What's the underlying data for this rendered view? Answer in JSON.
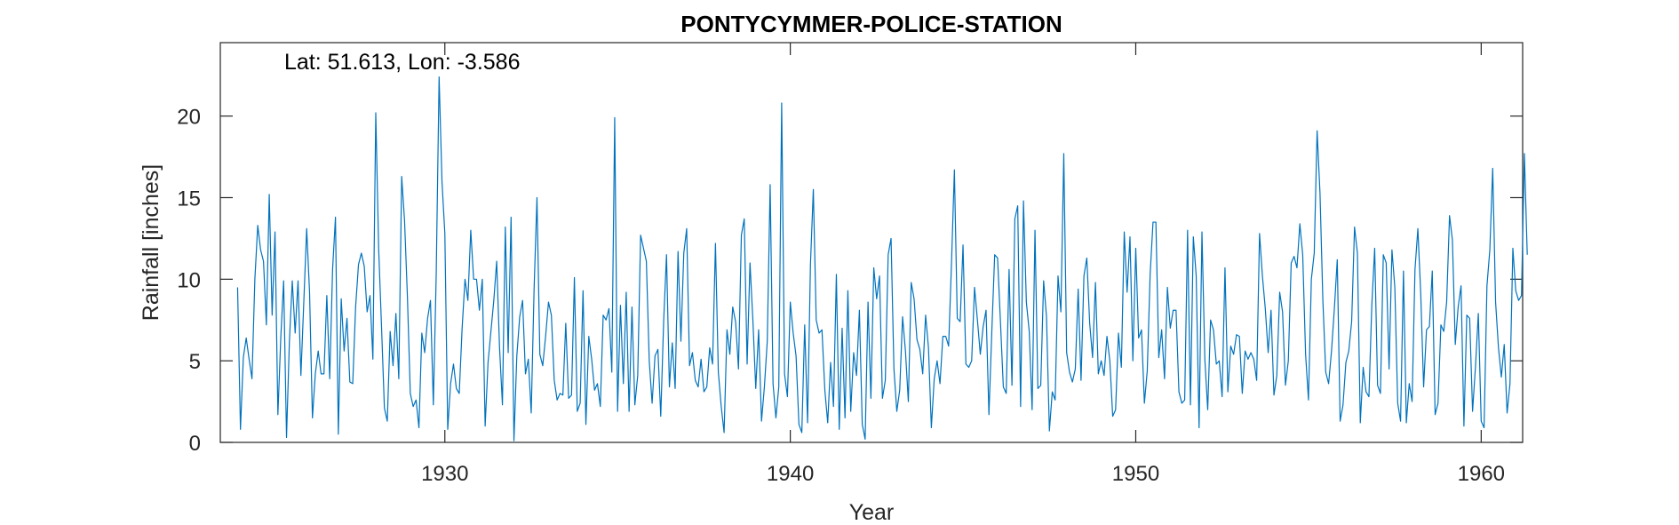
{
  "chart_data": {
    "type": "line",
    "title": "PONTYCYMMER-POLICE-STATION",
    "annotation": "Lat: 51.613, Lon: -3.586",
    "xlabel": "Year",
    "ylabel": "Rainfall [inches]",
    "xlim": [
      1923.5,
      1961.2
    ],
    "ylim": [
      0,
      24.5
    ],
    "xticks": [
      1930,
      1940,
      1950,
      1960
    ],
    "yticks": [
      0,
      5,
      10,
      15,
      20
    ],
    "grid": false,
    "color": "#0072BD",
    "start_year": 1924,
    "interval": "monthly",
    "series": [
      {
        "values": [
          9.5,
          0.8,
          5.2,
          6.4,
          5.1,
          3.9,
          10.0,
          13.3,
          11.8,
          11.1,
          7.2,
          15.2,
          7.8,
          12.9,
          1.7,
          6.4,
          9.9,
          0.3,
          6.2,
          9.9,
          6.7,
          9.9,
          4.1,
          8.6,
          13.1,
          9.2,
          1.5,
          4.2,
          5.6,
          4.2,
          4.2,
          9.0,
          3.9,
          10.6,
          13.8,
          0.5,
          8.8,
          5.6,
          7.6,
          3.7,
          3.6,
          8.3,
          10.9,
          11.6,
          10.8,
          8.0,
          9.0,
          5.1,
          20.2,
          11.9,
          7.1,
          2.1,
          1.3,
          6.8,
          4.7,
          7.9,
          3.9,
          16.3,
          13.6,
          8.9,
          3.0,
          2.2,
          2.6,
          0.9,
          6.7,
          5.5,
          7.6,
          8.7,
          2.3,
          10.3,
          22.4,
          16.0,
          12.8,
          0.8,
          3.6,
          4.8,
          3.3,
          3.0,
          7.0,
          10.0,
          8.7,
          13.0,
          10.0,
          10.0,
          8.1,
          10.0,
          1.0,
          4.9,
          6.8,
          8.7,
          11.1,
          5.8,
          2.3,
          13.2,
          5.5,
          13.8,
          0.1,
          5.3,
          7.7,
          8.7,
          4.2,
          5.1,
          1.8,
          9.4,
          15.0,
          5.4,
          4.7,
          6.5,
          8.6,
          7.8,
          3.8,
          2.6,
          3.0,
          2.9,
          7.3,
          2.7,
          2.9,
          10.1,
          1.9,
          2.4,
          9.3,
          1.1,
          6.5,
          5.1,
          3.2,
          3.6,
          2.2,
          7.8,
          7.5,
          8.2,
          4.3,
          19.9,
          1.9,
          8.4,
          3.6,
          9.2,
          1.9,
          8.3,
          2.3,
          4.1,
          12.7,
          11.9,
          11.1,
          5.0,
          2.4,
          5.3,
          5.7,
          1.6,
          7.4,
          11.5,
          3.4,
          6.1,
          3.3,
          11.7,
          6.2,
          11.6,
          13.1,
          4.7,
          5.5,
          3.8,
          3.4,
          5.1,
          3.1,
          3.4,
          5.8,
          4.8,
          12.2,
          4.3,
          2.2,
          0.6,
          6.9,
          5.4,
          8.3,
          7.4,
          4.5,
          12.7,
          13.7,
          4.8,
          11.0,
          7.5,
          3.3,
          6.9,
          1.3,
          3.4,
          6.2,
          15.8,
          3.6,
          1.5,
          3.4,
          20.8,
          4.2,
          2.8,
          8.6,
          6.7,
          5.3,
          1.1,
          0.6,
          7.2,
          1.2,
          10.9,
          15.5,
          7.5,
          6.7,
          6.9,
          3.2,
          1.2,
          4.9,
          2.2,
          10.3,
          0.8,
          7.0,
          1.5,
          9.3,
          1.9,
          5.5,
          4.1,
          8.1,
          1.1,
          0.2,
          8.6,
          2.7,
          10.7,
          8.8,
          10.2,
          2.7,
          3.8,
          11.5,
          12.5,
          4.5,
          1.9,
          3.2,
          7.7,
          5.6,
          2.5,
          9.8,
          8.8,
          6.3,
          5.7,
          4.2,
          7.8,
          5.8,
          0.9,
          3.9,
          5.0,
          3.6,
          6.5,
          6.5,
          5.9,
          11.0,
          16.7,
          7.6,
          7.4,
          12.1,
          4.8,
          4.6,
          5.0,
          9.5,
          7.5,
          5.4,
          7.1,
          8.1,
          1.7,
          6.8,
          11.5,
          11.3,
          7.4,
          3.4,
          3.0,
          10.6,
          3.5,
          13.7,
          14.5,
          2.2,
          14.8,
          8.6,
          6.8,
          2.0,
          13.0,
          3.3,
          3.5,
          9.9,
          7.7,
          0.7,
          3.1,
          2.6,
          10.2,
          8.0,
          17.7,
          5.5,
          4.3,
          3.7,
          4.5,
          9.4,
          3.8,
          10.2,
          11.3,
          7.3,
          5.2,
          9.8,
          4.2,
          5.0,
          4.1,
          6.5,
          5.0,
          1.6,
          2.0,
          6.7,
          4.6,
          12.9,
          9.2,
          12.6,
          5.0,
          11.9,
          6.4,
          6.9,
          2.4,
          4.4,
          10.3,
          13.5,
          13.5,
          5.2,
          6.9,
          3.9,
          9.5,
          7.0,
          8.1,
          8.1,
          3.1,
          2.4,
          2.6,
          13.0,
          2.3,
          12.6,
          10.2,
          0.9,
          12.9,
          5.1,
          2.0,
          7.5,
          6.9,
          4.8,
          5.0,
          2.8,
          10.7,
          3.1,
          5.9,
          5.4,
          6.6,
          6.5,
          3.0,
          5.6,
          5.1,
          5.5,
          5.1,
          3.8,
          12.8,
          10.2,
          8.2,
          5.5,
          8.1,
          2.9,
          4.1,
          9.2,
          8.0,
          3.5,
          5.0,
          11.0,
          11.4,
          10.7,
          13.4,
          11.5,
          5.4,
          2.6,
          10.0,
          11.6,
          19.1,
          15.3,
          8.7,
          4.3,
          3.6,
          5.6,
          8.2,
          11.2,
          1.3,
          2.3,
          4.9,
          5.6,
          7.4,
          13.2,
          11.6,
          1.2,
          4.6,
          3.1,
          2.8,
          8.4,
          11.9,
          3.5,
          3.0,
          11.5,
          11.0,
          4.5,
          11.8,
          9.5,
          2.4,
          1.3,
          10.5,
          1.2,
          3.6,
          2.5,
          10.6,
          13.1,
          9.1,
          3.4,
          6.9,
          7.1,
          10.5,
          1.7,
          2.4,
          7.2,
          6.8,
          8.6,
          13.9,
          12.4,
          6.0,
          8.3,
          9.6,
          1.0,
          7.8,
          7.6,
          1.9,
          4.6,
          7.9,
          1.3,
          0.9,
          9.6,
          11.8,
          16.8,
          8.6,
          5.8,
          4.0,
          6.0,
          1.8,
          3.6,
          11.9,
          9.3,
          8.7,
          9.0,
          17.7,
          11.5
        ]
      }
    ]
  }
}
